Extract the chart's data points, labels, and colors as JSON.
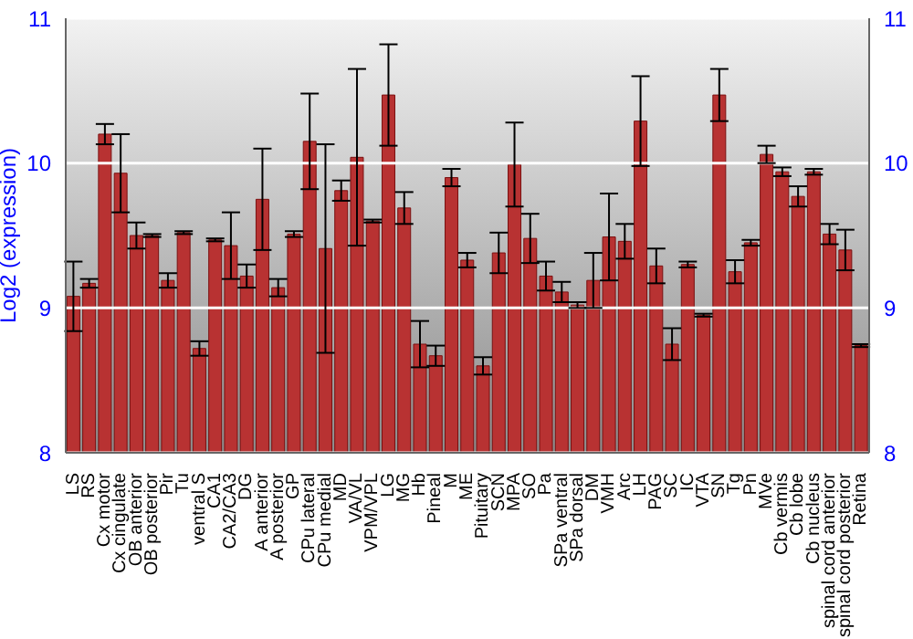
{
  "chart_data": {
    "type": "bar",
    "ylabel": "Log2 (expression)",
    "categories": [
      "LS",
      "RS",
      "Cx motor",
      "Cx cingulate",
      "OB anterior",
      "OB posterior",
      "Pir",
      "Tu",
      "ventral S",
      "CA1",
      "CA2/CA3",
      "DG",
      "A anterior",
      "A posterior",
      "GP",
      "CPu lateral",
      "CPu medial",
      "MD",
      "VA/VL",
      "VPM/VPL",
      "LG",
      "MG",
      "Hb",
      "Pineal",
      "M",
      "ME",
      "Pituitary",
      "SCN",
      "MPA",
      "SO",
      "Pa",
      "SPa ventral",
      "SPa dorsal",
      "DM",
      "VMH",
      "Arc",
      "LH",
      "PAG",
      "SC",
      "IC",
      "VTA",
      "SN",
      "Tg",
      "Pn",
      "MVe",
      "Cb vermis",
      "Cb lobe",
      "Cb nucleus",
      "spinal cord anterior",
      "spinal cord posterior",
      "Retina"
    ],
    "series": [
      {
        "color": "#b83232",
        "values": [
          9.08,
          9.17,
          10.2,
          9.93,
          9.5,
          9.5,
          9.19,
          9.52,
          8.72,
          9.47,
          9.43,
          9.22,
          9.75,
          9.14,
          9.51,
          10.15,
          9.41,
          9.81,
          10.04,
          9.6,
          10.47,
          9.69,
          8.75,
          8.67,
          9.9,
          9.33,
          8.6,
          9.38,
          9.99,
          9.48,
          9.22,
          9.11,
          9.02,
          9.19,
          9.49,
          9.46,
          10.29,
          9.29,
          8.75,
          9.3,
          8.95,
          10.47,
          9.25,
          9.45,
          10.06,
          9.94,
          9.77,
          9.94,
          9.51,
          9.4,
          8.74
        ],
        "errors": [
          0.24,
          0.03,
          0.07,
          0.27,
          0.09,
          0.01,
          0.05,
          0.01,
          0.05,
          0.01,
          0.23,
          0.08,
          0.35,
          0.06,
          0.02,
          0.33,
          0.72,
          0.07,
          0.61,
          0.01,
          0.35,
          0.11,
          0.16,
          0.07,
          0.06,
          0.05,
          0.06,
          0.14,
          0.29,
          0.17,
          0.1,
          0.07,
          0.02,
          0.19,
          0.3,
          0.12,
          0.31,
          0.12,
          0.11,
          0.02,
          0.01,
          0.18,
          0.08,
          0.02,
          0.06,
          0.03,
          0.07,
          0.02,
          0.07,
          0.14,
          0.01
        ]
      }
    ],
    "ylim": [
      8,
      11
    ],
    "yticks": [
      8,
      9,
      10,
      11
    ],
    "y2lim": [
      8,
      11
    ],
    "y2ticks": [
      8,
      9,
      10,
      11
    ],
    "grid": "y"
  }
}
